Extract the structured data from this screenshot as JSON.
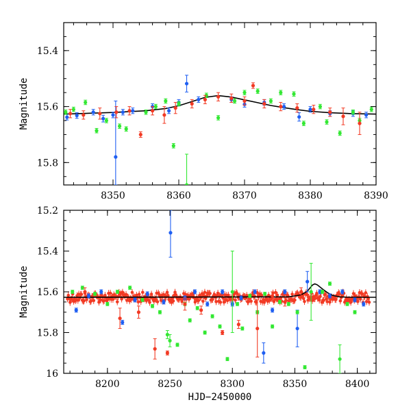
{
  "figure": {
    "xlabel": "HJD−2450000",
    "ylabel": "Magnitude"
  },
  "colors": {
    "blue": "#1f5ff2",
    "green": "#33e833",
    "red": "#f23a24",
    "model": "#000000",
    "frame": "#000000"
  },
  "chart_data": [
    {
      "type": "scatter",
      "title": "",
      "xlabel": "",
      "ylabel": "Magnitude",
      "xlim": [
        8342.5,
        8390
      ],
      "ylim": [
        15.88,
        15.3
      ],
      "y_inverted": true,
      "grid": false,
      "x_ticks": [
        8350,
        8360,
        8370,
        8380,
        8390
      ],
      "y_ticks": [
        15.4,
        15.6,
        15.8
      ],
      "x_tick_labels": [
        "8350",
        "8360",
        "8370",
        "8380",
        "8390"
      ],
      "y_tick_labels": [
        "15.4",
        "15.6",
        "15.8"
      ],
      "model_curve": {
        "x": [
          8342.5,
          8345,
          8350,
          8355,
          8358,
          8360,
          8362,
          8364,
          8366,
          8368,
          8370,
          8372,
          8374,
          8376,
          8378,
          8380,
          8383,
          8386,
          8390
        ],
        "y": [
          15.627,
          15.625,
          15.621,
          15.615,
          15.607,
          15.597,
          15.582,
          15.567,
          15.561,
          15.566,
          15.576,
          15.586,
          15.596,
          15.604,
          15.611,
          15.617,
          15.622,
          15.625,
          15.627
        ]
      },
      "series": [
        {
          "color": "blue",
          "x": [
            8343,
            8344.5,
            8347,
            8348.5,
            8350,
            8350.4,
            8351.5,
            8353,
            8356,
            8358.5,
            8360,
            8361.2,
            8363,
            8368,
            8370,
            8373,
            8376,
            8378.3,
            8380,
            8383,
            8386.5,
            8388.5
          ],
          "y": [
            15.638,
            15.632,
            15.62,
            15.643,
            15.63,
            15.78,
            15.62,
            15.615,
            15.6,
            15.615,
            15.585,
            15.518,
            15.575,
            15.575,
            15.592,
            15.585,
            15.6,
            15.637,
            15.61,
            15.625,
            15.625,
            15.63
          ],
          "err": [
            0.01,
            0.01,
            0.01,
            0.012,
            0.01,
            0.2,
            0.01,
            0.01,
            0.01,
            0.01,
            0.01,
            0.03,
            0.01,
            0.01,
            0.01,
            0.01,
            0.01,
            0.015,
            0.01,
            0.01,
            0.01,
            0.01
          ]
        },
        {
          "color": "green",
          "x": [
            8342.8,
            8344,
            8345.8,
            8347.5,
            8349,
            8351,
            8352,
            8355,
            8356.5,
            8358,
            8359.2,
            8360,
            8361.2,
            8364.2,
            8366,
            8368.5,
            8370,
            8372,
            8374,
            8375.5,
            8377.5,
            8379,
            8381.5,
            8382.5,
            8384.5,
            8386.5,
            8387.5,
            8389.3
          ],
          "y": [
            15.62,
            15.61,
            15.585,
            15.686,
            15.65,
            15.67,
            15.68,
            15.62,
            15.6,
            15.58,
            15.74,
            15.59,
            15.88,
            15.56,
            15.64,
            15.58,
            15.55,
            15.545,
            15.58,
            15.55,
            15.555,
            15.66,
            15.6,
            15.655,
            15.695,
            15.62,
            15.65,
            15.61
          ],
          "err": [
            0.008,
            0.008,
            0.008,
            0.008,
            0.008,
            0.008,
            0.008,
            0.008,
            0.008,
            0.008,
            0.008,
            0.008,
            0.11,
            0.008,
            0.008,
            0.008,
            0.008,
            0.008,
            0.008,
            0.008,
            0.008,
            0.008,
            0.008,
            0.008,
            0.008,
            0.008,
            0.008,
            0.008
          ]
        },
        {
          "color": "red",
          "x": [
            8343.5,
            8345.5,
            8348,
            8350.5,
            8352.5,
            8354.2,
            8356,
            8357.8,
            8359.5,
            8362,
            8364,
            8366,
            8368,
            8370,
            8371.3,
            8373,
            8375.5,
            8378,
            8380.5,
            8383,
            8385,
            8387.5
          ],
          "y": [
            15.625,
            15.63,
            15.625,
            15.62,
            15.615,
            15.7,
            15.615,
            15.63,
            15.605,
            15.59,
            15.575,
            15.565,
            15.57,
            15.58,
            15.525,
            15.59,
            15.6,
            15.605,
            15.61,
            15.62,
            15.635,
            15.66
          ],
          "err": [
            0.015,
            0.015,
            0.02,
            0.02,
            0.015,
            0.01,
            0.015,
            0.03,
            0.02,
            0.015,
            0.015,
            0.015,
            0.015,
            0.015,
            0.01,
            0.015,
            0.015,
            0.015,
            0.015,
            0.015,
            0.03,
            0.04
          ]
        }
      ]
    },
    {
      "type": "scatter",
      "title": "",
      "xlabel": "HJD−2450000",
      "ylabel": "Magnitude",
      "xlim": [
        8165,
        8415
      ],
      "ylim": [
        16.0,
        15.2
      ],
      "y_inverted": true,
      "grid": false,
      "x_ticks": [
        8200,
        8250,
        8300,
        8350,
        8400
      ],
      "y_ticks": [
        15.2,
        15.4,
        15.6,
        15.8,
        16.0
      ],
      "x_tick_labels": [
        "8200",
        "8250",
        "8300",
        "8350",
        "8400"
      ],
      "y_tick_labels": [
        "15.2",
        "15.4",
        "15.6",
        "15.8",
        "16"
      ],
      "model_curve": {
        "x": [
          8165,
          8345,
          8355,
          8360,
          8364,
          8366,
          8368,
          8372,
          8376,
          8380,
          8386,
          8395,
          8415
        ],
        "y": [
          15.627,
          15.625,
          15.615,
          15.597,
          15.567,
          15.561,
          15.566,
          15.586,
          15.604,
          15.617,
          15.625,
          15.627,
          15.627
        ]
      },
      "dense_band": {
        "x_start": 8168,
        "x_end": 8410,
        "y_center": 15.627,
        "color": "red"
      },
      "series": [
        {
          "color": "blue",
          "x": [
            8175,
            8185,
            8195,
            8212,
            8222,
            8232,
            8245,
            8250.5,
            8262,
            8270,
            8280,
            8292,
            8300,
            8307,
            8318,
            8325,
            8332,
            8342,
            8352,
            8360,
            8370,
            8378,
            8388,
            8398,
            8405
          ],
          "y": [
            15.69,
            15.62,
            15.6,
            15.75,
            15.64,
            15.61,
            15.65,
            15.31,
            15.63,
            15.6,
            15.66,
            15.6,
            15.66,
            15.63,
            15.6,
            15.9,
            15.69,
            15.6,
            15.78,
            15.55,
            15.6,
            15.62,
            15.6,
            15.64,
            15.66
          ],
          "err": [
            0.01,
            0.01,
            0.01,
            0.01,
            0.01,
            0.01,
            0.01,
            0.12,
            0.01,
            0.01,
            0.01,
            0.01,
            0.01,
            0.01,
            0.01,
            0.05,
            0.01,
            0.01,
            0.09,
            0.05,
            0.01,
            0.01,
            0.01,
            0.01,
            0.01
          ]
        },
        {
          "color": "green",
          "x": [
            8172,
            8180,
            8190,
            8200,
            8208,
            8218,
            8228,
            8236,
            8242,
            8248,
            8250,
            8256,
            8262,
            8266,
            8272,
            8278,
            8284,
            8290,
            8296,
            8300,
            8304,
            8308,
            8314,
            8320,
            8326,
            8332,
            8338,
            8345,
            8352,
            8358,
            8363,
            8372,
            8378,
            8386,
            8392,
            8398
          ],
          "y": [
            15.6,
            15.58,
            15.61,
            15.66,
            15.6,
            15.58,
            15.64,
            15.67,
            15.7,
            15.81,
            15.84,
            15.86,
            15.66,
            15.74,
            15.68,
            15.8,
            15.72,
            15.77,
            15.93,
            15.6,
            15.66,
            15.78,
            15.62,
            15.7,
            15.61,
            15.77,
            15.65,
            15.66,
            15.7,
            15.97,
            15.6,
            15.6,
            15.56,
            15.93,
            15.66,
            15.7
          ],
          "err": [
            0.008,
            0.008,
            0.008,
            0.008,
            0.008,
            0.008,
            0.008,
            0.008,
            0.008,
            0.02,
            0.03,
            0.008,
            0.008,
            0.008,
            0.008,
            0.008,
            0.008,
            0.008,
            0.008,
            0.2,
            0.008,
            0.008,
            0.008,
            0.008,
            0.008,
            0.008,
            0.008,
            0.008,
            0.008,
            0.008,
            0.14,
            0.008,
            0.008,
            0.07,
            0.008,
            0.008
          ]
        },
        {
          "color": "red",
          "x": [
            8182,
            8210,
            8225,
            8238,
            8248,
            8262,
            8275,
            8292,
            8305,
            8320,
            8332,
            8342,
            8355
          ],
          "y": [
            15.6,
            15.73,
            15.7,
            15.88,
            15.9,
            15.66,
            15.69,
            15.8,
            15.76,
            15.78,
            15.62,
            15.65,
            15.6
          ],
          "err": [
            0.02,
            0.05,
            0.03,
            0.05,
            0.01,
            0.03,
            0.02,
            0.01,
            0.02,
            0.14,
            0.02,
            0.02,
            0.02
          ]
        }
      ]
    }
  ]
}
